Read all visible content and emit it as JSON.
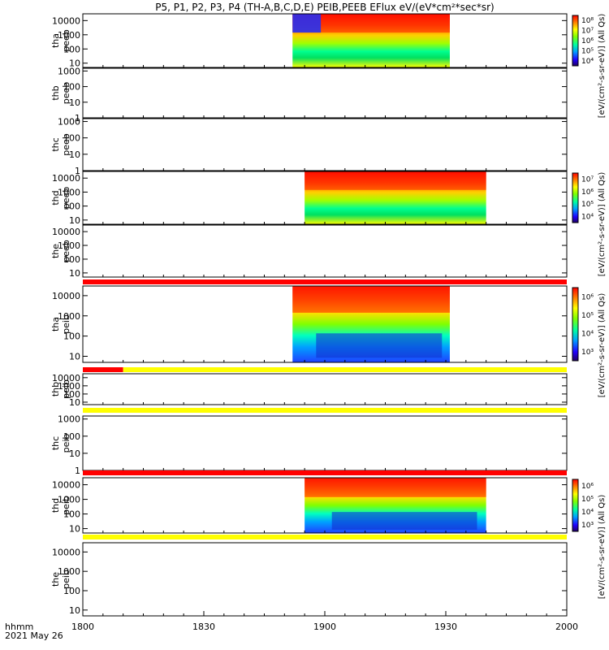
{
  "title": "P5, P1, P2, P3, P4 (TH-A,B,C,D,E) PEIB,PEEB EFlux eV/(eV*cm²*sec*sr)",
  "x_axis": {
    "row_label": "hhmm",
    "date_label": "2021 May 26",
    "ticks": [
      "1800",
      "1830",
      "1900",
      "1930",
      "2000"
    ]
  },
  "colors": {
    "mode_red": "#ff0000",
    "mode_yellow": "#ffff00",
    "frame": "#000000"
  },
  "colorbar_labels": {
    "peeb_top": "[eV/(cm²-s-sr-eV)] (All Qs)",
    "peeb_thd": "[eV/(cm²-s-sr-eV)] (All Qs)",
    "peib_tha": "[eV/(cm²-s-sr-eV)] (All Qs)",
    "peib_thd": "[eV/(cm²-s-sr-eV)] (All Qs)"
  },
  "chart_data": {
    "type": "heatmap",
    "x_unit": "UT hhmm",
    "xlim": [
      "1800",
      "2000"
    ],
    "panels": [
      {
        "probe": "tha",
        "product": "peeb",
        "yticks": [
          "10",
          "100",
          "1000",
          "10000"
        ],
        "ylim": [
          5,
          30000
        ],
        "data_coverage": [
          "1852",
          "1931"
        ],
        "colorbar": [
          "10⁴",
          "10⁵",
          "10⁶",
          "10⁷",
          "10⁸"
        ]
      },
      {
        "probe": "thb",
        "product": "peeb",
        "yticks": [
          "1",
          "10",
          "100",
          "1000"
        ],
        "ylim": [
          1,
          1500
        ],
        "data_coverage": null
      },
      {
        "probe": "thc",
        "product": "peeb",
        "yticks": [
          "1",
          "10",
          "100",
          "1000"
        ],
        "ylim": [
          1,
          1500
        ],
        "data_coverage": null
      },
      {
        "probe": "thd",
        "product": "peeb",
        "yticks": [
          "10",
          "100",
          "1000",
          "10000"
        ],
        "ylim": [
          5,
          30000
        ],
        "data_coverage": [
          "1855",
          "1940"
        ],
        "colorbar": [
          "10⁴",
          "10⁵",
          "10⁶",
          "10⁷"
        ]
      },
      {
        "probe": "the",
        "product": "peeb",
        "yticks": [
          "10",
          "100",
          "1000",
          "10000"
        ],
        "ylim": [
          5,
          30000
        ],
        "data_coverage": null
      },
      {
        "probe": "tha",
        "product": "peib",
        "yticks": [
          "10",
          "100",
          "1000",
          "10000"
        ],
        "ylim": [
          5,
          30000
        ],
        "data_coverage": [
          "1852",
          "1931"
        ],
        "colorbar": [
          "10³",
          "10⁴",
          "10⁵",
          "10⁶"
        ]
      },
      {
        "probe": "thb",
        "product": "peib",
        "yticks": [
          "10",
          "100",
          "1000",
          "10000"
        ],
        "ylim": [
          5,
          30000
        ],
        "data_coverage": null
      },
      {
        "probe": "thc",
        "product": "peib",
        "yticks": [
          "1",
          "10",
          "100",
          "1000"
        ],
        "ylim": [
          1,
          1500
        ],
        "data_coverage": null
      },
      {
        "probe": "thd",
        "product": "peib",
        "yticks": [
          "10",
          "100",
          "1000",
          "10000"
        ],
        "ylim": [
          5,
          30000
        ],
        "data_coverage": [
          "1855",
          "1940"
        ],
        "colorbar": [
          "10³",
          "10⁴",
          "10⁵",
          "10⁶"
        ]
      },
      {
        "probe": "the",
        "product": "peib",
        "yticks": [
          "10",
          "100",
          "1000",
          "10000"
        ],
        "ylim": [
          5,
          30000
        ],
        "data_coverage": null
      }
    ],
    "mode_bars": [
      {
        "after_panel": 4,
        "segments": [
          {
            "from": "1800",
            "to": "2000",
            "color": "red"
          }
        ]
      },
      {
        "after_panel": 5,
        "segments": [
          {
            "from": "1800",
            "to": "1810",
            "color": "red"
          },
          {
            "from": "1810",
            "to": "2000",
            "color": "yellow"
          }
        ]
      },
      {
        "after_panel": 6,
        "segments": [
          {
            "from": "1800",
            "to": "2000",
            "color": "yellow"
          }
        ]
      },
      {
        "after_panel": 7,
        "segments": [
          {
            "from": "1800",
            "to": "2000",
            "color": "red"
          }
        ]
      },
      {
        "after_panel": 8,
        "segments": [
          {
            "from": "1800",
            "to": "2000",
            "color": "yellow"
          }
        ]
      }
    ]
  }
}
